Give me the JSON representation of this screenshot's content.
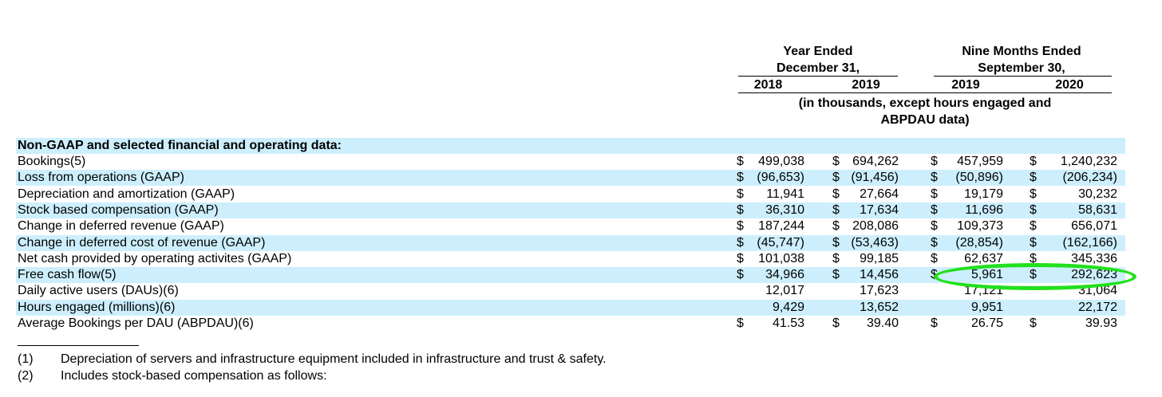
{
  "header": {
    "group1_line1": "Year Ended",
    "group1_line2": "December 31,",
    "group2_line1": "Nine Months Ended",
    "group2_line2": "September 30,",
    "years": [
      "2018",
      "2019",
      "2019",
      "2020"
    ],
    "units_line1": "(in thousands, except hours engaged and",
    "units_line2": "ABPDAU data)"
  },
  "section_title": "Non-GAAP and selected financial and operating data:",
  "rows": [
    {
      "label": "Bookings(5)",
      "cells": [
        [
          "$",
          "499,038"
        ],
        [
          "$",
          "694,262"
        ],
        [
          "$",
          "457,959"
        ],
        [
          "$",
          "1,240,232"
        ]
      ]
    },
    {
      "label": "Loss from operations (GAAP)",
      "cells": [
        [
          "$",
          "(96,653)"
        ],
        [
          "$",
          "(91,456)"
        ],
        [
          "$",
          "(50,896)"
        ],
        [
          "$",
          "(206,234)"
        ]
      ]
    },
    {
      "label": "Depreciation and amortization (GAAP)",
      "cells": [
        [
          "$",
          "11,941"
        ],
        [
          "$",
          "27,664"
        ],
        [
          "$",
          "19,179"
        ],
        [
          "$",
          "30,232"
        ]
      ]
    },
    {
      "label": "Stock based compensation (GAAP)",
      "cells": [
        [
          "$",
          "36,310"
        ],
        [
          "$",
          "17,634"
        ],
        [
          "$",
          "11,696"
        ],
        [
          "$",
          "58,631"
        ]
      ]
    },
    {
      "label": "Change in deferred revenue (GAAP)",
      "cells": [
        [
          "$",
          "187,244"
        ],
        [
          "$",
          "208,086"
        ],
        [
          "$",
          "109,373"
        ],
        [
          "$",
          "656,071"
        ]
      ]
    },
    {
      "label": "Change in deferred cost of revenue (GAAP)",
      "cells": [
        [
          "$",
          "(45,747)"
        ],
        [
          "$",
          "(53,463)"
        ],
        [
          "$",
          "(28,854)"
        ],
        [
          "$",
          "(162,166)"
        ]
      ]
    },
    {
      "label": "Net cash provided by operating activites (GAAP)",
      "cells": [
        [
          "$",
          "101,038"
        ],
        [
          "$",
          "99,185"
        ],
        [
          "$",
          "62,637"
        ],
        [
          "$",
          "345,336"
        ]
      ]
    },
    {
      "label": "Free cash flow(5)",
      "cells": [
        [
          "$",
          "34,966"
        ],
        [
          "$",
          "14,456"
        ],
        [
          "$",
          "5,961"
        ],
        [
          "$",
          "292,623"
        ]
      ]
    },
    {
      "label": "Daily active users (DAUs)(6)",
      "cells": [
        [
          "",
          "12,017"
        ],
        [
          "",
          "17,623"
        ],
        [
          "",
          "17,121"
        ],
        [
          "",
          "31,064"
        ]
      ]
    },
    {
      "label": "Hours engaged (millions)(6)",
      "cells": [
        [
          "",
          "9,429"
        ],
        [
          "",
          "13,652"
        ],
        [
          "",
          "9,951"
        ],
        [
          "",
          "22,172"
        ]
      ]
    },
    {
      "label": "Average Bookings per DAU (ABPDAU)(6)",
      "cells": [
        [
          "$",
          "41.53"
        ],
        [
          "$",
          "39.40"
        ],
        [
          "$",
          "26.75"
        ],
        [
          "$",
          "39.93"
        ]
      ]
    }
  ],
  "footnotes": [
    {
      "num": "(1)",
      "text": "Depreciation of servers and infrastructure equipment included in infrastructure and trust & safety."
    },
    {
      "num": "(2)",
      "text": "Includes stock-based compensation as follows:"
    }
  ],
  "highlight_color": "#22e01c",
  "shade_color": "#cdeffd"
}
